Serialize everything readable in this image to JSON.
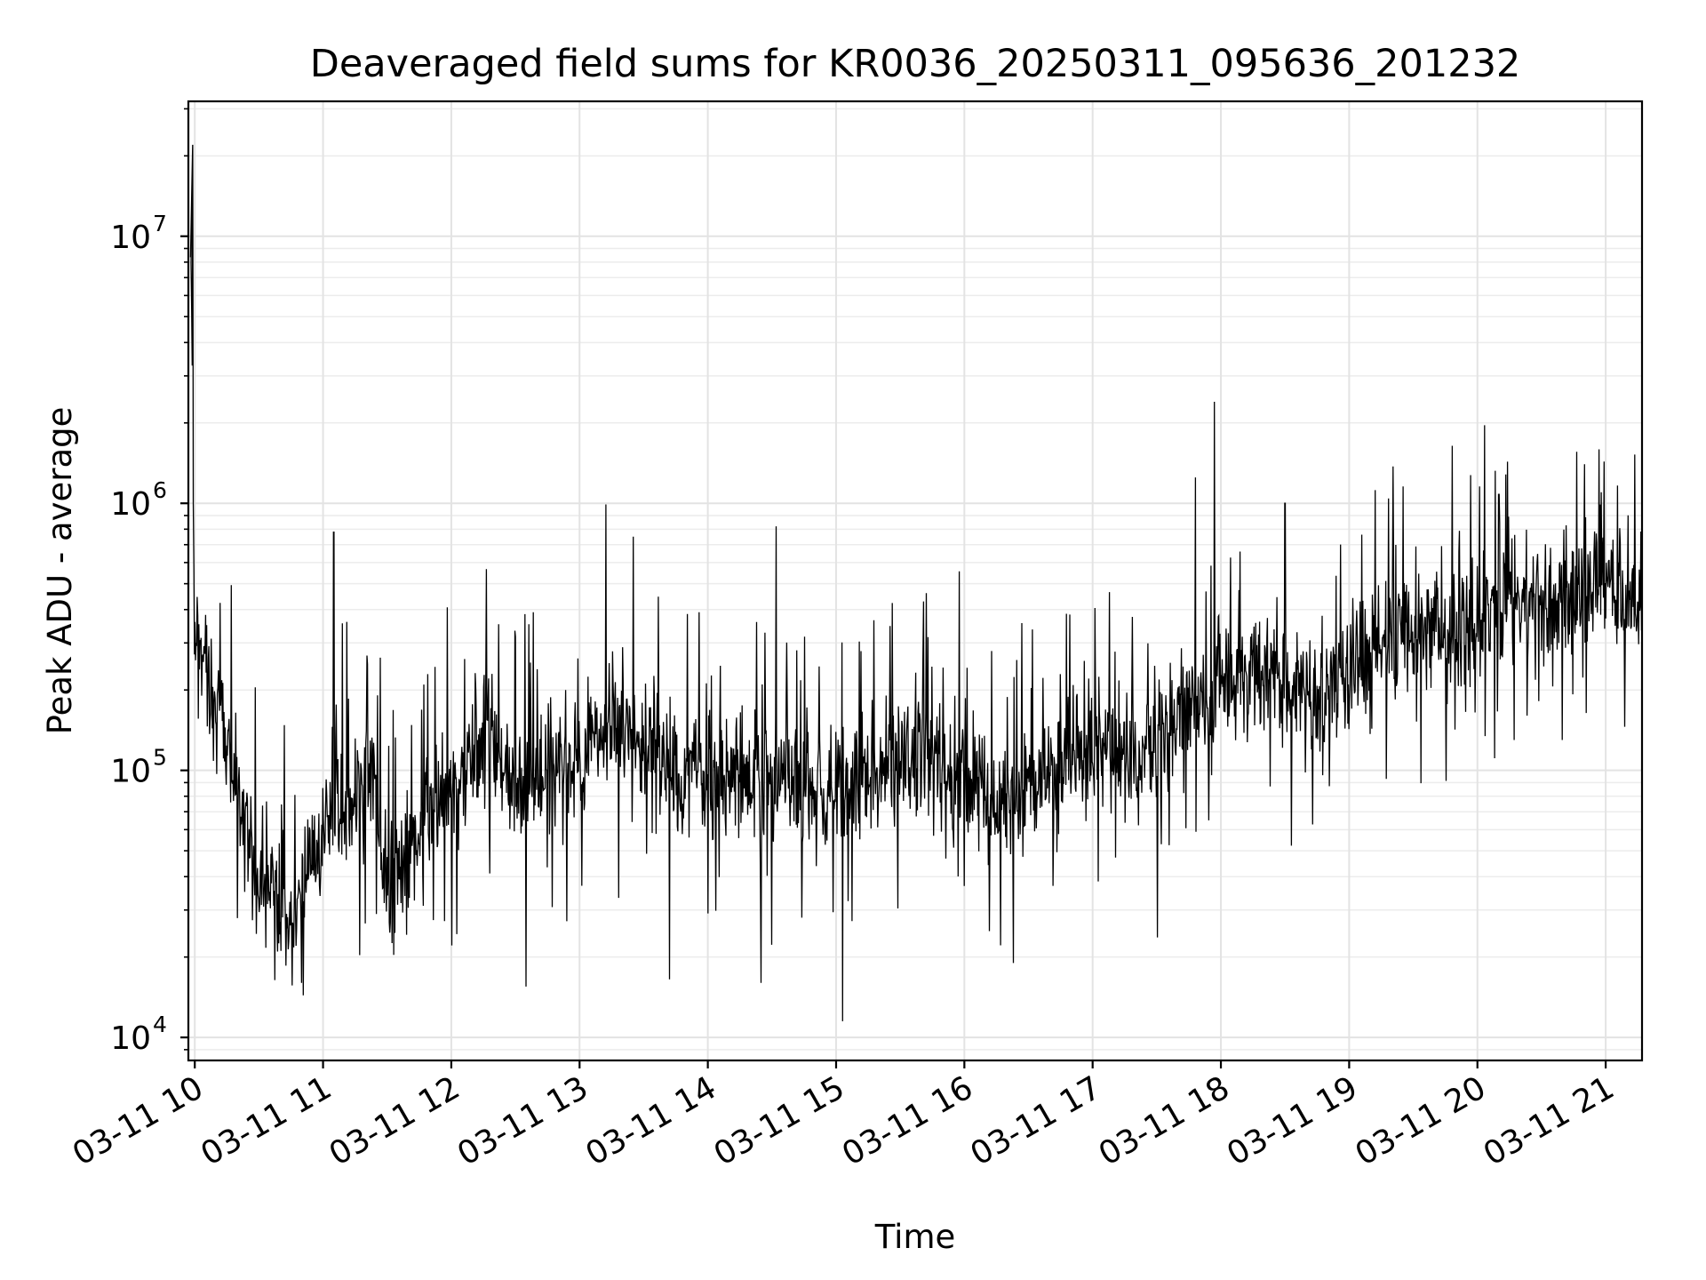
{
  "chart_data": {
    "type": "line",
    "title": "Deaveraged field sums for KR0036_20250311_095636_201232",
    "xlabel": "Time",
    "ylabel": "Peak ADU - average",
    "x_scale": "time",
    "y_scale": "log",
    "xlim": [
      "2025-03-11 09:57",
      "2025-03-11 21:17"
    ],
    "ylim": [
      8200,
      32000000
    ],
    "x_ticks": [
      {
        "value": "2025-03-11 10:00",
        "label": "03-11 10"
      },
      {
        "value": "2025-03-11 11:00",
        "label": "03-11 11"
      },
      {
        "value": "2025-03-11 12:00",
        "label": "03-11 12"
      },
      {
        "value": "2025-03-11 13:00",
        "label": "03-11 13"
      },
      {
        "value": "2025-03-11 14:00",
        "label": "03-11 14"
      },
      {
        "value": "2025-03-11 15:00",
        "label": "03-11 15"
      },
      {
        "value": "2025-03-11 16:00",
        "label": "03-11 16"
      },
      {
        "value": "2025-03-11 17:00",
        "label": "03-11 17"
      },
      {
        "value": "2025-03-11 18:00",
        "label": "03-11 18"
      },
      {
        "value": "2025-03-11 19:00",
        "label": "03-11 19"
      },
      {
        "value": "2025-03-11 20:00",
        "label": "03-11 20"
      },
      {
        "value": "2025-03-11 21:00",
        "label": "03-11 21"
      }
    ],
    "y_ticks": [
      {
        "value": 10000,
        "base": "10",
        "exp": "4"
      },
      {
        "value": 100000,
        "base": "10",
        "exp": "5"
      },
      {
        "value": 1000000,
        "base": "10",
        "exp": "6"
      },
      {
        "value": 10000000,
        "base": "10",
        "exp": "7"
      }
    ],
    "grid": true,
    "line_color": "#000000",
    "series": [
      {
        "x": [
          "2025-03-11 09:57",
          "2025-03-11 09:58",
          "2025-03-11 09:59",
          "2025-03-11 10:00",
          "2025-03-11 10:03",
          "2025-03-11 10:08",
          "2025-03-11 10:13",
          "2025-03-11 10:18",
          "2025-03-11 10:23",
          "2025-03-11 10:30",
          "2025-03-11 10:38",
          "2025-03-11 10:45",
          "2025-03-11 10:53",
          "2025-03-11 11:00",
          "2025-03-11 11:08",
          "2025-03-11 11:15",
          "2025-03-11 11:23",
          "2025-03-11 11:30",
          "2025-03-11 11:38",
          "2025-03-11 11:45",
          "2025-03-11 11:53",
          "2025-03-11 12:00",
          "2025-03-11 12:15",
          "2025-03-11 12:30",
          "2025-03-11 12:45",
          "2025-03-11 13:00",
          "2025-03-11 13:15",
          "2025-03-11 13:30",
          "2025-03-11 13:45",
          "2025-03-11 14:00",
          "2025-03-11 14:15",
          "2025-03-11 14:30",
          "2025-03-11 14:45",
          "2025-03-11 15:00",
          "2025-03-11 15:15",
          "2025-03-11 15:30",
          "2025-03-11 15:45",
          "2025-03-11 16:00",
          "2025-03-11 16:15",
          "2025-03-11 16:30",
          "2025-03-11 16:45",
          "2025-03-11 17:00",
          "2025-03-11 17:15",
          "2025-03-11 17:30",
          "2025-03-11 17:45",
          "2025-03-11 18:00",
          "2025-03-11 18:15",
          "2025-03-11 18:30",
          "2025-03-11 18:45",
          "2025-03-11 19:00",
          "2025-03-11 19:15",
          "2025-03-11 19:30",
          "2025-03-11 19:45",
          "2025-03-11 20:00",
          "2025-03-11 20:15",
          "2025-03-11 20:30",
          "2025-03-11 20:45",
          "2025-03-11 21:00",
          "2025-03-11 21:08",
          "2025-03-11 21:17"
        ],
        "y": [
          180000,
          22000000,
          1100000,
          300000,
          250000,
          200000,
          160000,
          110000,
          60000,
          45000,
          35000,
          30000,
          35000,
          60000,
          70000,
          70000,
          100000,
          35000,
          45000,
          60000,
          70000,
          80000,
          140000,
          90000,
          100000,
          110000,
          150000,
          120000,
          100000,
          90000,
          100000,
          95000,
          90000,
          85000,
          100000,
          110000,
          120000,
          100000,
          70000,
          80000,
          110000,
          120000,
          120000,
          110000,
          200000,
          200000,
          220000,
          220000,
          180000,
          250000,
          320000,
          350000,
          300000,
          380000,
          400000,
          420000,
          400000,
          550000,
          420000,
          430000
        ]
      }
    ],
    "spikes": [
      {
        "x": "2025-03-11 09:59",
        "y": 22000000
      },
      {
        "x": "2025-03-11 17:57",
        "y": 2400000
      },
      {
        "x": "2025-03-11 17:48",
        "y": 1250000
      },
      {
        "x": "2025-03-11 11:05",
        "y": 780000
      },
      {
        "x": "2025-03-11 13:25",
        "y": 750000
      },
      {
        "x": "2025-03-11 14:32",
        "y": 820000
      },
      {
        "x": "2025-03-11 18:30",
        "y": 1000000
      },
      {
        "x": "2025-03-11 20:10",
        "y": 1080000
      },
      {
        "x": "2025-03-11 20:58",
        "y": 1100000
      },
      {
        "x": "2025-03-11 15:03",
        "y": 11500
      },
      {
        "x": "2025-03-11 10:50",
        "y": 16000
      },
      {
        "x": "2025-03-11 12:35",
        "y": 15500
      },
      {
        "x": "2025-03-11 13:42",
        "y": 16500
      },
      {
        "x": "2025-03-11 14:25",
        "y": 16000
      },
      {
        "x": "2025-03-11 16:23",
        "y": 19000
      }
    ]
  }
}
